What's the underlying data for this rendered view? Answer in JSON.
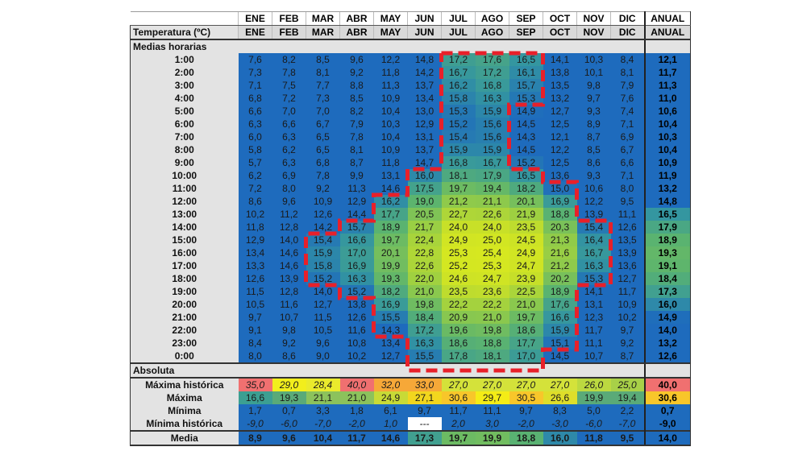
{
  "header": {
    "label": "",
    "title": "Temperatura (ºC)",
    "months": [
      "ENE",
      "FEB",
      "MAR",
      "ABR",
      "MAY",
      "JUN",
      "JUL",
      "AGO",
      "SEP",
      "OCT",
      "NOV",
      "DIC"
    ],
    "annual": "ANUAL"
  },
  "sections": {
    "hourly": "Medias horarias",
    "absolute": "Absoluta"
  },
  "hourly_rows": [
    {
      "hour": "1:00",
      "values": [
        "7,6",
        "8,2",
        "8,5",
        "9,6",
        "12,2",
        "14,8",
        "17,2",
        "17,6",
        "16,5",
        "14,1",
        "10,3",
        "8,4"
      ],
      "annual": "12,1"
    },
    {
      "hour": "2:00",
      "values": [
        "7,3",
        "7,8",
        "8,1",
        "9,2",
        "11,8",
        "14,2",
        "16,7",
        "17,2",
        "16,1",
        "13,8",
        "10,1",
        "8,1"
      ],
      "annual": "11,7"
    },
    {
      "hour": "3:00",
      "values": [
        "7,1",
        "7,5",
        "7,7",
        "8,8",
        "11,3",
        "13,7",
        "16,2",
        "16,8",
        "15,7",
        "13,5",
        "9,8",
        "7,9"
      ],
      "annual": "11,3"
    },
    {
      "hour": "4:00",
      "values": [
        "6,8",
        "7,2",
        "7,3",
        "8,5",
        "10,9",
        "13,4",
        "15,8",
        "16,3",
        "15,3",
        "13,2",
        "9,7",
        "7,6"
      ],
      "annual": "11,0"
    },
    {
      "hour": "5:00",
      "values": [
        "6,6",
        "7,0",
        "7,0",
        "8,2",
        "10,4",
        "13,0",
        "15,3",
        "15,9",
        "14,9",
        "12,7",
        "9,3",
        "7,4"
      ],
      "annual": "10,6"
    },
    {
      "hour": "6:00",
      "values": [
        "6,3",
        "6,6",
        "6,7",
        "7,9",
        "10,3",
        "12,9",
        "15,2",
        "15,6",
        "14,5",
        "12,5",
        "8,9",
        "7,1"
      ],
      "annual": "10,4"
    },
    {
      "hour": "7:00",
      "values": [
        "6,0",
        "6,3",
        "6,5",
        "7,8",
        "10,4",
        "13,1",
        "15,4",
        "15,6",
        "14,3",
        "12,1",
        "8,7",
        "6,9"
      ],
      "annual": "10,3"
    },
    {
      "hour": "8:00",
      "values": [
        "5,8",
        "6,2",
        "6,5",
        "8,1",
        "10,9",
        "13,7",
        "15,9",
        "15,9",
        "14,5",
        "12,2",
        "8,5",
        "6,7"
      ],
      "annual": "10,4"
    },
    {
      "hour": "9:00",
      "values": [
        "5,7",
        "6,3",
        "6,8",
        "8,7",
        "11,8",
        "14,7",
        "16,8",
        "16,7",
        "15,2",
        "12,5",
        "8,6",
        "6,6"
      ],
      "annual": "10,9"
    },
    {
      "hour": "10:00",
      "values": [
        "6,2",
        "6,9",
        "7,8",
        "9,9",
        "13,1",
        "16,0",
        "18,1",
        "17,9",
        "16,5",
        "13,6",
        "9,3",
        "7,1"
      ],
      "annual": "11,9"
    },
    {
      "hour": "11:00",
      "values": [
        "7,2",
        "8,0",
        "9,2",
        "11,3",
        "14,6",
        "17,5",
        "19,7",
        "19,4",
        "18,2",
        "15,0",
        "10,6",
        "8,0"
      ],
      "annual": "13,2"
    },
    {
      "hour": "12:00",
      "values": [
        "8,6",
        "9,6",
        "10,9",
        "12,9",
        "16,2",
        "19,0",
        "21,2",
        "21,1",
        "20,1",
        "16,9",
        "12,2",
        "9,5"
      ],
      "annual": "14,8"
    },
    {
      "hour": "13:00",
      "values": [
        "10,2",
        "11,2",
        "12,6",
        "14,4",
        "17,7",
        "20,5",
        "22,7",
        "22,6",
        "21,9",
        "18,8",
        "13,9",
        "11,1"
      ],
      "annual": "16,5"
    },
    {
      "hour": "14:00",
      "values": [
        "11,8",
        "12,8",
        "14,2",
        "15,7",
        "18,9",
        "21,7",
        "24,0",
        "24,0",
        "23,5",
        "20,3",
        "15,4",
        "12,6"
      ],
      "annual": "17,9"
    },
    {
      "hour": "15:00",
      "values": [
        "12,9",
        "14,0",
        "15,4",
        "16,6",
        "19,7",
        "22,4",
        "24,9",
        "25,0",
        "24,5",
        "21,3",
        "16,4",
        "13,5"
      ],
      "annual": "18,9"
    },
    {
      "hour": "16:00",
      "values": [
        "13,4",
        "14,6",
        "15,9",
        "17,0",
        "20,1",
        "22,8",
        "25,3",
        "25,4",
        "24,9",
        "21,6",
        "16,7",
        "13,9"
      ],
      "annual": "19,3"
    },
    {
      "hour": "17:00",
      "values": [
        "13,3",
        "14,6",
        "15,8",
        "16,9",
        "19,9",
        "22,6",
        "25,2",
        "25,3",
        "24,7",
        "21,2",
        "16,3",
        "13,6"
      ],
      "annual": "19,1"
    },
    {
      "hour": "18:00",
      "values": [
        "12,6",
        "13,9",
        "15,2",
        "16,3",
        "19,3",
        "22,0",
        "24,6",
        "24,7",
        "23,9",
        "20,2",
        "15,3",
        "12,7"
      ],
      "annual": "18,4"
    },
    {
      "hour": "19:00",
      "values": [
        "11,5",
        "12,8",
        "14,0",
        "15,2",
        "18,2",
        "21,0",
        "23,5",
        "23,6",
        "22,5",
        "18,9",
        "14,1",
        "11,7"
      ],
      "annual": "17,3"
    },
    {
      "hour": "20:00",
      "values": [
        "10,5",
        "11,6",
        "12,7",
        "13,8",
        "16,9",
        "19,8",
        "22,2",
        "22,2",
        "21,0",
        "17,6",
        "13,1",
        "10,9"
      ],
      "annual": "16,0"
    },
    {
      "hour": "21:00",
      "values": [
        "9,7",
        "10,7",
        "11,5",
        "12,6",
        "15,5",
        "18,4",
        "20,9",
        "21,0",
        "19,7",
        "16,6",
        "12,3",
        "10,2"
      ],
      "annual": "14,9"
    },
    {
      "hour": "22:00",
      "values": [
        "9,1",
        "9,8",
        "10,5",
        "11,6",
        "14,3",
        "17,2",
        "19,6",
        "19,8",
        "18,6",
        "15,9",
        "11,7",
        "9,7"
      ],
      "annual": "14,0"
    },
    {
      "hour": "23:00",
      "values": [
        "8,4",
        "9,2",
        "9,6",
        "10,8",
        "13,4",
        "16,3",
        "18,6",
        "18,8",
        "17,7",
        "15,1",
        "11,1",
        "9,2"
      ],
      "annual": "13,2"
    },
    {
      "hour": "0:00",
      "values": [
        "8,0",
        "8,6",
        "9,0",
        "10,2",
        "12,7",
        "15,5",
        "17,8",
        "18,1",
        "17,0",
        "14,5",
        "10,7",
        "8,7"
      ],
      "annual": "12,6"
    }
  ],
  "absolute_rows": [
    {
      "label": "Máxima histórica",
      "italic": true,
      "values": [
        "35,0",
        "29,0",
        "28,4",
        "40,0",
        "32,0",
        "33,0",
        "27,0",
        "27,0",
        "27,0",
        "27,0",
        "26,0",
        "25,0"
      ],
      "annual": "40,0",
      "colors": [
        "#f07070",
        "#f2ee1c",
        "#eaea2c",
        "#f07070",
        "#f6a838",
        "#f6a838",
        "#d4e23a",
        "#d4e23a",
        "#d4e23a",
        "#d4e23a",
        "#bcd940",
        "#a8d048"
      ],
      "annual_color": "#f07070"
    },
    {
      "label": "Máxima",
      "italic": false,
      "values": [
        "16,6",
        "19,3",
        "21,1",
        "21,0",
        "24,9",
        "27,1",
        "30,6",
        "29,7",
        "30,5",
        "26,6",
        "19,9",
        "19,4"
      ],
      "annual": "30,6",
      "colors": [
        "#3c9f92",
        "#5aaa78",
        "#8cc25c",
        "#8cc25c",
        "#c8da36",
        "#f2d61e",
        "#f8c62a",
        "#f4ec16",
        "#f8c62a",
        "#dede2a",
        "#5aaa78",
        "#5aaa78"
      ],
      "annual_color": "#f8c62a"
    },
    {
      "label": "Mínima",
      "italic": false,
      "values": [
        "1,7",
        "0,7",
        "3,3",
        "1,8",
        "6,1",
        "9,7",
        "11,7",
        "11,1",
        "9,7",
        "8,3",
        "5,0",
        "2,2"
      ],
      "annual": "0,7"
    },
    {
      "label": "Mínima histórica",
      "italic": true,
      "values": [
        "-9,0",
        "-6,0",
        "-7,0",
        "-2,0",
        "1,0",
        "---",
        "2,0",
        "3,0",
        "-2,0",
        "-3,0",
        "-6,0",
        "-7,0"
      ],
      "annual": "-9,0"
    }
  ],
  "media_row": {
    "label": "Media",
    "values": [
      "8,9",
      "9,6",
      "10,4",
      "11,7",
      "14,6",
      "17,3",
      "19,7",
      "19,9",
      "18,8",
      "16,0",
      "11,8",
      "9,5"
    ],
    "annual": "14,0"
  },
  "colors": {
    "cold": "#1e6bbd",
    "highlight_dash": "#e8202a",
    "empty_cell": "#ffffff"
  }
}
